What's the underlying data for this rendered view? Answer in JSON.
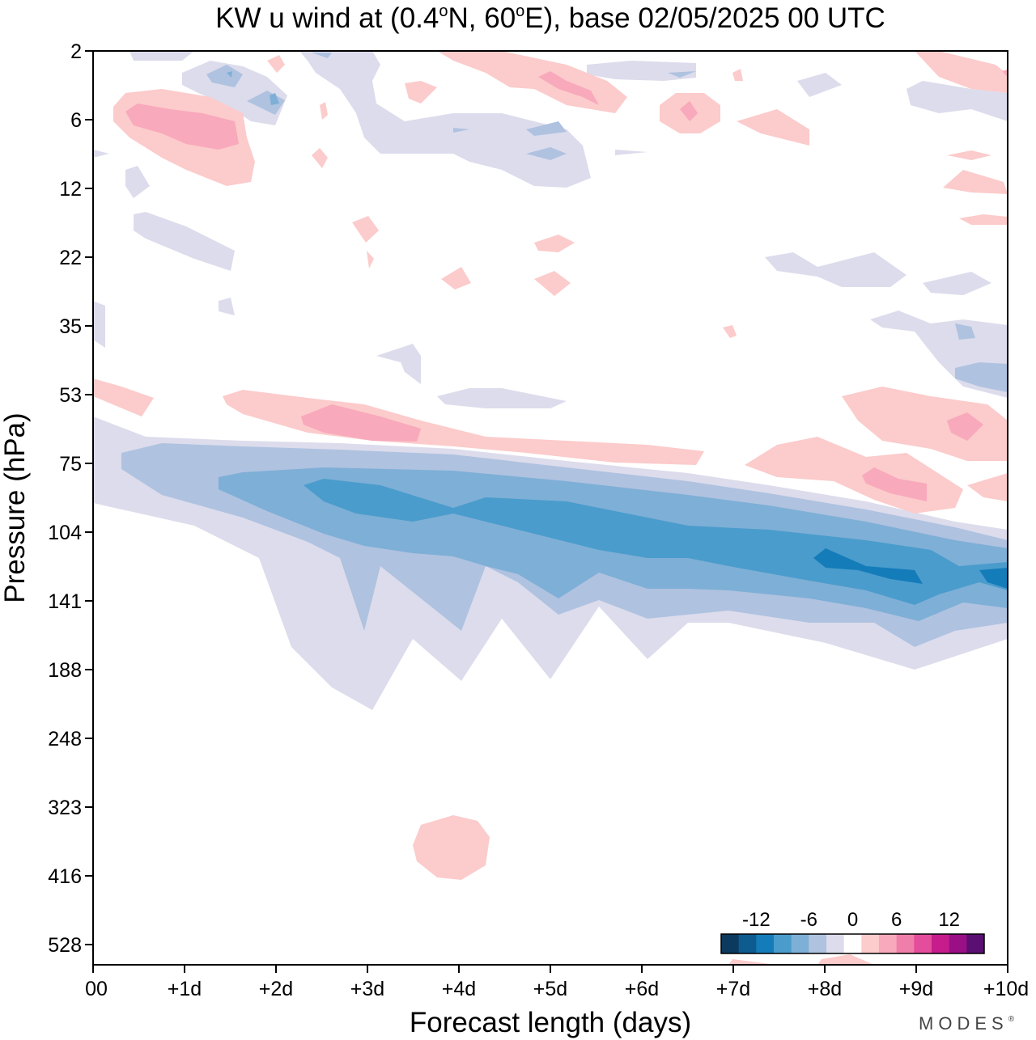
{
  "chart_data": {
    "type": "heatmap",
    "title_parts": {
      "prefix": "KW u wind at (0.4",
      "deg1": "o",
      "mid": "N, 60",
      "deg2": "o",
      "suffix": "E),  base 02/05/2025  00 UTC"
    },
    "xlabel": "Forecast length (days)",
    "ylabel": "Pressure (hPa)",
    "x_ticks": [
      "00",
      "+1d",
      "+2d",
      "+3d",
      "+4d",
      "+5d",
      "+6d",
      "+7d",
      "+8d",
      "+9d",
      "+10d"
    ],
    "x_range_days": [
      0,
      10
    ],
    "y_ticks": [
      "2",
      "6",
      "12",
      "22",
      "35",
      "53",
      "75",
      "104",
      "141",
      "188",
      "248",
      "323",
      "416",
      "528"
    ],
    "y_scale": "pressure levels (log-like), top 2 hPa, bottom below 528 hPa",
    "colorbar": {
      "tick_labels": [
        "-12",
        "-6",
        "0",
        "6",
        "12"
      ],
      "bins": [
        -16,
        -14,
        -12,
        -10,
        -8,
        -6,
        -4,
        -2,
        2,
        4,
        6,
        8,
        10,
        12,
        14,
        16
      ],
      "colors": [
        "#0b3a5e",
        "#0e5b90",
        "#157cba",
        "#4a9ccc",
        "#7eafd6",
        "#afc2e0",
        "#dcdcec",
        "#ffffff",
        "#fccbcb",
        "#f8a9bb",
        "#f07eaa",
        "#e34d9c",
        "#c61c8c",
        "#9a0f86",
        "#5c0f73"
      ]
    },
    "features": [
      {
        "label": "easterly jet core",
        "level_range_hPa": [
          75,
          141
        ],
        "peak_u": -12,
        "days": [
          0,
          10
        ]
      },
      {
        "label": "westerly layer",
        "level_range_hPa": [
          53,
          75
        ],
        "peak_u": 6,
        "days": [
          1.5,
          9.8
        ]
      },
      {
        "label": "upper westerly blob",
        "level_hPa": 6,
        "peak_u": 6,
        "days": [
          0.2,
          1.6
        ]
      },
      {
        "label": "lower westerly blob",
        "level_hPa": 370,
        "peak_u": 3,
        "days": [
          3.5,
          4.3
        ]
      }
    ]
  },
  "branding": {
    "text": "MODES",
    "mark": "®"
  }
}
